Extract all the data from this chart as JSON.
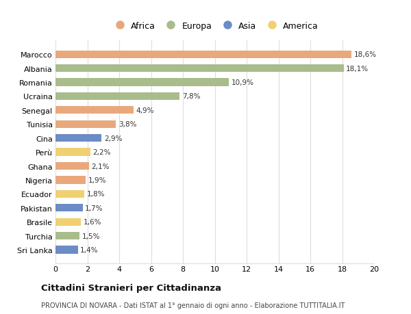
{
  "countries": [
    "Sri Lanka",
    "Turchia",
    "Brasile",
    "Pakistan",
    "Ecuador",
    "Nigeria",
    "Ghana",
    "Perù",
    "Cina",
    "Tunisia",
    "Senegal",
    "Ucraina",
    "Romania",
    "Albania",
    "Marocco"
  ],
  "values": [
    1.4,
    1.5,
    1.6,
    1.7,
    1.8,
    1.9,
    2.1,
    2.2,
    2.9,
    3.8,
    4.9,
    7.8,
    10.9,
    18.1,
    18.6
  ],
  "continents": [
    "Asia",
    "Europa",
    "America",
    "Asia",
    "America",
    "Africa",
    "Africa",
    "America",
    "Asia",
    "Africa",
    "Africa",
    "Europa",
    "Europa",
    "Europa",
    "Africa"
  ],
  "colors": {
    "Africa": "#E8A87C",
    "Europa": "#A8BC8C",
    "Asia": "#6B8CC4",
    "America": "#F0D070"
  },
  "legend_order": [
    "Africa",
    "Europa",
    "Asia",
    "America"
  ],
  "xlim": [
    0,
    20
  ],
  "xticks": [
    0,
    2,
    4,
    6,
    8,
    10,
    12,
    14,
    16,
    18,
    20
  ],
  "title": "Cittadini Stranieri per Cittadinanza",
  "subtitle": "PROVINCIA DI NOVARA - Dati ISTAT al 1° gennaio di ogni anno - Elaborazione TUTTITALIA.IT",
  "background_color": "#ffffff",
  "grid_color": "#dddddd"
}
